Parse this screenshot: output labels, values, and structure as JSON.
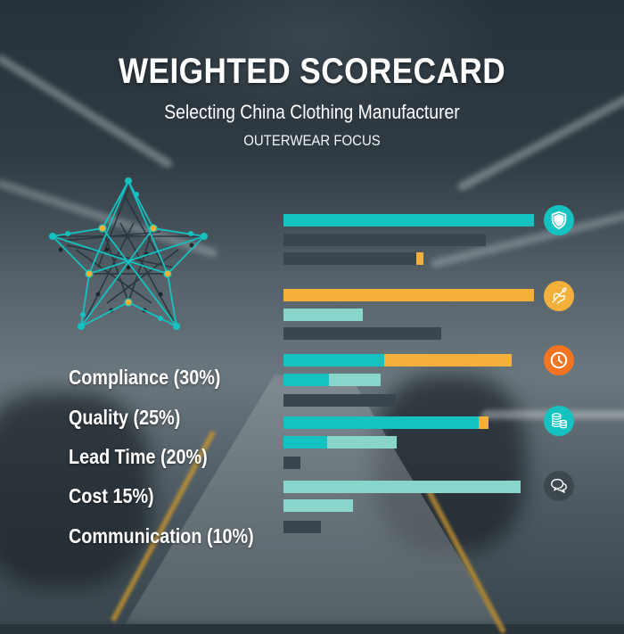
{
  "header": {
    "title": "WEIGHTED SCORECARD",
    "subtitle": "Selecting China Clothing Manufacturer",
    "focus": "OUTERWEAR FOCUS"
  },
  "colors": {
    "teal": "#14c2c2",
    "mint": "#88d5cb",
    "dark": "#3a454d",
    "orange": "#f5b03c",
    "clock_orange": "#f47421",
    "chat_dark": "#3c474e"
  },
  "labels": [
    {
      "text": "Compliance (30%)"
    },
    {
      "text": "Quality (25%)"
    },
    {
      "text": "Lead Time (20%)"
    },
    {
      "text": "Cost 15%)"
    },
    {
      "text": "Communication (10%)"
    }
  ],
  "icons": [
    {
      "name": "shield-icon",
      "color": "#14c2c2"
    },
    {
      "name": "needle-thread-icon",
      "color": "#f5b03c"
    },
    {
      "name": "clock-icon",
      "color": "#f47421"
    },
    {
      "name": "coins-icon",
      "color": "#14c2c2"
    },
    {
      "name": "chat-bubbles-icon",
      "color": "#3c474e"
    }
  ],
  "chart_data": {
    "type": "bar",
    "orientation": "horizontal",
    "title": "WEIGHTED SCORECARD",
    "subtitle": "Selecting China Clothing Manufacturer — OUTERWEAR FOCUS",
    "categories": [
      "Compliance (30%)",
      "Quality (25%)",
      "Lead Time (20%)",
      "Cost 15%)",
      "Communication (10%)"
    ],
    "note": "Unlabeled bars; values are relative lengths in pixels (max ≈ 281px). Each category has 3 bars, some stacked with two colored segments.",
    "groups": [
      {
        "category": "Compliance",
        "bars": [
          {
            "segments": [
              {
                "color": "teal",
                "value": 281
              }
            ]
          },
          {
            "segments": [
              {
                "color": "dark",
                "value": 227
              }
            ]
          },
          {
            "segments": [
              {
                "color": "dark",
                "value": 149
              },
              {
                "color": "orange",
                "value": 8
              }
            ]
          }
        ]
      },
      {
        "category": "Quality",
        "bars": [
          {
            "segments": [
              {
                "color": "orange",
                "value": 281
              }
            ]
          },
          {
            "segments": [
              {
                "color": "mint",
                "value": 89
              }
            ]
          },
          {
            "segments": [
              {
                "color": "dark",
                "value": 177
              }
            ]
          }
        ]
      },
      {
        "category": "Lead Time",
        "bars": [
          {
            "segments": [
              {
                "color": "teal",
                "value": 113
              },
              {
                "color": "orange",
                "value": 143
              }
            ]
          },
          {
            "segments": [
              {
                "color": "teal",
                "value": 51
              },
              {
                "color": "mint",
                "value": 58
              }
            ]
          },
          {
            "segments": [
              {
                "color": "dark",
                "value": 126
              }
            ]
          }
        ]
      },
      {
        "category": "Cost",
        "bars": [
          {
            "segments": [
              {
                "color": "teal",
                "value": 219
              },
              {
                "color": "orange",
                "value": 11
              }
            ]
          },
          {
            "segments": [
              {
                "color": "teal",
                "value": 49
              },
              {
                "color": "mint",
                "value": 78
              }
            ]
          },
          {
            "segments": [
              {
                "color": "dark",
                "value": 19
              }
            ]
          }
        ]
      },
      {
        "category": "Communication",
        "bars": [
          {
            "segments": [
              {
                "color": "mint",
                "value": 266
              }
            ]
          },
          {
            "segments": [
              {
                "color": "mint",
                "value": 78
              }
            ]
          },
          {
            "segments": [
              {
                "color": "dark",
                "value": 42
              }
            ]
          }
        ]
      }
    ],
    "xlabel": "",
    "ylabel": "",
    "grid": false,
    "legend": "none"
  }
}
